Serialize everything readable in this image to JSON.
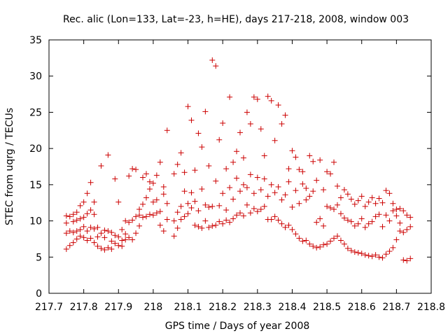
{
  "chart_data": {
    "type": "scatter",
    "title": "Rec. alic (Lon=133, Lat=-23, h=HE), days 217-218, 2008, window 003",
    "xlabel": "GPS time / Days of year 2008",
    "ylabel": "STEC from uqrg / TECUs",
    "xlim": [
      217.7,
      218.8
    ],
    "ylim": [
      0,
      35
    ],
    "xticks": [
      "217.7",
      "217.8",
      "217.9",
      "218",
      "218.1",
      "218.2",
      "218.3",
      "218.4",
      "218.5",
      "218.6",
      "218.7",
      "218.8"
    ],
    "yticks": [
      "0",
      "5",
      "10",
      "15",
      "20",
      "25",
      "30",
      "35"
    ],
    "grid": false,
    "marker": "+",
    "color": "#cc0000",
    "points": [
      [
        217.75,
        6.1
      ],
      [
        217.75,
        8.3
      ],
      [
        217.75,
        9.7
      ],
      [
        217.75,
        10.7
      ],
      [
        217.76,
        6.6
      ],
      [
        217.76,
        8.6
      ],
      [
        217.76,
        10.6
      ],
      [
        217.77,
        7.0
      ],
      [
        217.77,
        8.4
      ],
      [
        217.77,
        9.9
      ],
      [
        217.77,
        10.9
      ],
      [
        217.78,
        7.5
      ],
      [
        217.78,
        8.6
      ],
      [
        217.78,
        10.1
      ],
      [
        217.78,
        11.2
      ],
      [
        217.79,
        7.9
      ],
      [
        217.79,
        8.8
      ],
      [
        217.79,
        10.3
      ],
      [
        217.79,
        12.1
      ],
      [
        217.8,
        7.7
      ],
      [
        217.8,
        9.2
      ],
      [
        217.8,
        10.5
      ],
      [
        217.8,
        12.6
      ],
      [
        217.81,
        7.3
      ],
      [
        217.81,
        8.6
      ],
      [
        217.81,
        11.0
      ],
      [
        217.81,
        13.8
      ],
      [
        217.82,
        7.6
      ],
      [
        217.82,
        9.1
      ],
      [
        217.82,
        11.5
      ],
      [
        217.82,
        15.3
      ],
      [
        217.83,
        7.0
      ],
      [
        217.83,
        8.9
      ],
      [
        217.83,
        10.9
      ],
      [
        217.83,
        12.6
      ],
      [
        217.84,
        6.5
      ],
      [
        217.84,
        7.8
      ],
      [
        217.84,
        9.1
      ],
      [
        217.85,
        6.2
      ],
      [
        217.85,
        8.3
      ],
      [
        217.85,
        17.6
      ],
      [
        217.86,
        6.0
      ],
      [
        217.86,
        7.7
      ],
      [
        217.86,
        8.7
      ],
      [
        217.87,
        6.3
      ],
      [
        217.87,
        8.6
      ],
      [
        217.87,
        19.1
      ],
      [
        217.88,
        6.1
      ],
      [
        217.88,
        7.2
      ],
      [
        217.88,
        8.4
      ],
      [
        217.89,
        6.9
      ],
      [
        217.89,
        8.0
      ],
      [
        217.89,
        15.8
      ],
      [
        217.9,
        6.6
      ],
      [
        217.9,
        7.8
      ],
      [
        217.9,
        12.6
      ],
      [
        217.91,
        6.5
      ],
      [
        217.91,
        7.3
      ],
      [
        217.91,
        8.8
      ],
      [
        217.92,
        7.4
      ],
      [
        217.92,
        8.2
      ],
      [
        217.92,
        10.0
      ],
      [
        217.93,
        7.7
      ],
      [
        217.93,
        9.8
      ],
      [
        217.93,
        16.2
      ],
      [
        217.94,
        7.4
      ],
      [
        217.94,
        10.1
      ],
      [
        217.94,
        17.2
      ],
      [
        217.95,
        8.3
      ],
      [
        217.95,
        10.6
      ],
      [
        217.95,
        17.1
      ],
      [
        217.96,
        9.3
      ],
      [
        217.96,
        10.8
      ],
      [
        217.96,
        11.6
      ],
      [
        217.97,
        10.5
      ],
      [
        217.97,
        12.3
      ],
      [
        217.97,
        16.0
      ],
      [
        217.98,
        10.6
      ],
      [
        217.98,
        13.2
      ],
      [
        217.98,
        16.5
      ],
      [
        217.99,
        10.9
      ],
      [
        217.99,
        14.4
      ],
      [
        217.99,
        15.4
      ],
      [
        218.0,
        10.8
      ],
      [
        218.0,
        12.6
      ],
      [
        218.0,
        15.2
      ],
      [
        218.01,
        11.1
      ],
      [
        218.01,
        12.9
      ],
      [
        218.01,
        16.3
      ],
      [
        218.02,
        9.4
      ],
      [
        218.02,
        11.3
      ],
      [
        218.02,
        18.1
      ],
      [
        218.03,
        8.6
      ],
      [
        218.03,
        13.7
      ],
      [
        218.03,
        14.7
      ],
      [
        218.04,
        10.2
      ],
      [
        218.04,
        12.4
      ],
      [
        218.04,
        22.5
      ],
      [
        218.06,
        7.9
      ],
      [
        218.06,
        10.0
      ],
      [
        218.06,
        16.5
      ],
      [
        218.07,
        9.0
      ],
      [
        218.07,
        11.2
      ],
      [
        218.07,
        17.8
      ],
      [
        218.08,
        10.2
      ],
      [
        218.08,
        12.0
      ],
      [
        218.08,
        19.4
      ],
      [
        218.09,
        10.6
      ],
      [
        218.09,
        14.1
      ],
      [
        218.09,
        16.7
      ],
      [
        218.1,
        11.0
      ],
      [
        218.1,
        12.4
      ],
      [
        218.1,
        25.8
      ],
      [
        218.11,
        11.8
      ],
      [
        218.11,
        13.9
      ],
      [
        218.11,
        23.9
      ],
      [
        218.12,
        9.4
      ],
      [
        218.12,
        12.7
      ],
      [
        218.12,
        17.0
      ],
      [
        218.13,
        9.2
      ],
      [
        218.13,
        11.4
      ],
      [
        218.13,
        22.1
      ],
      [
        218.14,
        9.0
      ],
      [
        218.14,
        14.4
      ],
      [
        218.14,
        20.2
      ],
      [
        218.15,
        10.0
      ],
      [
        218.15,
        12.2
      ],
      [
        218.15,
        25.1
      ],
      [
        218.16,
        9.1
      ],
      [
        218.16,
        11.9
      ],
      [
        218.16,
        17.6
      ],
      [
        218.17,
        9.3
      ],
      [
        218.17,
        12.0
      ],
      [
        218.17,
        32.2
      ],
      [
        218.18,
        9.4
      ],
      [
        218.18,
        15.5
      ],
      [
        218.18,
        31.4
      ],
      [
        218.19,
        9.9
      ],
      [
        218.19,
        12.1
      ],
      [
        218.19,
        21.2
      ],
      [
        218.2,
        9.6
      ],
      [
        218.2,
        13.8
      ],
      [
        218.2,
        23.5
      ],
      [
        218.21,
        10.1
      ],
      [
        218.21,
        11.5
      ],
      [
        218.21,
        17.2
      ],
      [
        218.22,
        9.8
      ],
      [
        218.22,
        14.6
      ],
      [
        218.22,
        27.1
      ],
      [
        218.23,
        10.3
      ],
      [
        218.23,
        13.0
      ],
      [
        218.23,
        18.1
      ],
      [
        218.24,
        10.8
      ],
      [
        218.24,
        15.9
      ],
      [
        218.24,
        19.6
      ],
      [
        218.25,
        11.1
      ],
      [
        218.25,
        14.1
      ],
      [
        218.25,
        22.2
      ],
      [
        218.26,
        10.7
      ],
      [
        218.26,
        15.0
      ],
      [
        218.26,
        18.7
      ],
      [
        218.27,
        12.2
      ],
      [
        218.27,
        14.6
      ],
      [
        218.27,
        25.0
      ],
      [
        218.28,
        11.1
      ],
      [
        218.28,
        16.4
      ],
      [
        218.28,
        23.4
      ],
      [
        218.29,
        11.7
      ],
      [
        218.29,
        13.8
      ],
      [
        218.29,
        27.1
      ],
      [
        218.3,
        11.3
      ],
      [
        218.3,
        16.0
      ],
      [
        218.3,
        26.8
      ],
      [
        218.31,
        11.6
      ],
      [
        218.31,
        14.3
      ],
      [
        218.31,
        22.7
      ],
      [
        218.32,
        12.0
      ],
      [
        218.32,
        15.8
      ],
      [
        218.32,
        19.0
      ],
      [
        218.33,
        10.2
      ],
      [
        218.33,
        13.4
      ],
      [
        218.33,
        27.2
      ],
      [
        218.34,
        10.2
      ],
      [
        218.34,
        15.0
      ],
      [
        218.34,
        26.6
      ],
      [
        218.35,
        10.6
      ],
      [
        218.35,
        13.9
      ],
      [
        218.35,
        21.1
      ],
      [
        218.36,
        10.1
      ],
      [
        218.36,
        14.7
      ],
      [
        218.36,
        26.0
      ],
      [
        218.37,
        9.6
      ],
      [
        218.37,
        12.9
      ],
      [
        218.37,
        23.4
      ],
      [
        218.38,
        9.1
      ],
      [
        218.38,
        13.6
      ],
      [
        218.38,
        24.6
      ],
      [
        218.39,
        9.4
      ],
      [
        218.39,
        15.4
      ],
      [
        218.39,
        17.2
      ],
      [
        218.4,
        8.8
      ],
      [
        218.4,
        11.9
      ],
      [
        218.4,
        19.7
      ],
      [
        218.41,
        8.2
      ],
      [
        218.41,
        14.2
      ],
      [
        218.41,
        18.8
      ],
      [
        218.42,
        7.6
      ],
      [
        218.42,
        12.4
      ],
      [
        218.42,
        17.1
      ],
      [
        218.43,
        7.2
      ],
      [
        218.43,
        15.1
      ],
      [
        218.43,
        16.8
      ],
      [
        218.44,
        7.3
      ],
      [
        218.44,
        12.9
      ],
      [
        218.44,
        14.5
      ],
      [
        218.45,
        6.8
      ],
      [
        218.45,
        13.4
      ],
      [
        218.45,
        19.0
      ],
      [
        218.46,
        6.5
      ],
      [
        218.46,
        14.1
      ],
      [
        218.46,
        18.2
      ],
      [
        218.47,
        6.3
      ],
      [
        218.47,
        9.8
      ],
      [
        218.47,
        15.6
      ],
      [
        218.48,
        6.4
      ],
      [
        218.48,
        10.3
      ],
      [
        218.48,
        18.4
      ],
      [
        218.49,
        6.7
      ],
      [
        218.49,
        9.3
      ],
      [
        218.49,
        14.3
      ],
      [
        218.5,
        6.8
      ],
      [
        218.5,
        12.0
      ],
      [
        218.5,
        16.8
      ],
      [
        218.51,
        7.2
      ],
      [
        218.51,
        11.8
      ],
      [
        218.51,
        16.5
      ],
      [
        218.52,
        7.6
      ],
      [
        218.52,
        11.6
      ],
      [
        218.52,
        18.1
      ],
      [
        218.53,
        7.9
      ],
      [
        218.53,
        12.2
      ],
      [
        218.53,
        14.8
      ],
      [
        218.54,
        7.3
      ],
      [
        218.54,
        11.0
      ],
      [
        218.54,
        13.2
      ],
      [
        218.55,
        6.8
      ],
      [
        218.55,
        10.4
      ],
      [
        218.55,
        14.3
      ],
      [
        218.56,
        6.2
      ],
      [
        218.56,
        10.1
      ],
      [
        218.56,
        13.7
      ],
      [
        218.57,
        5.9
      ],
      [
        218.57,
        9.9
      ],
      [
        218.57,
        13.0
      ],
      [
        218.58,
        5.7
      ],
      [
        218.58,
        9.3
      ],
      [
        218.58,
        12.3
      ],
      [
        218.59,
        5.6
      ],
      [
        218.59,
        9.6
      ],
      [
        218.59,
        12.8
      ],
      [
        218.6,
        5.5
      ],
      [
        218.6,
        10.3
      ],
      [
        218.6,
        13.4
      ],
      [
        218.61,
        5.3
      ],
      [
        218.61,
        9.1
      ],
      [
        218.61,
        12.0
      ],
      [
        218.62,
        5.2
      ],
      [
        218.62,
        9.6
      ],
      [
        218.62,
        12.6
      ],
      [
        218.63,
        5.1
      ],
      [
        218.63,
        9.9
      ],
      [
        218.63,
        13.2
      ],
      [
        218.64,
        5.3
      ],
      [
        218.64,
        10.6
      ],
      [
        218.64,
        12.4
      ],
      [
        218.65,
        5.0
      ],
      [
        218.65,
        10.9
      ],
      [
        218.65,
        13.1
      ],
      [
        218.66,
        4.9
      ],
      [
        218.66,
        9.2
      ],
      [
        218.66,
        12.5
      ],
      [
        218.67,
        5.4
      ],
      [
        218.67,
        10.8
      ],
      [
        218.67,
        14.2
      ],
      [
        218.68,
        5.8
      ],
      [
        218.68,
        10.0
      ],
      [
        218.68,
        13.8
      ],
      [
        218.69,
        6.3
      ],
      [
        218.69,
        11.4
      ],
      [
        218.69,
        12.4
      ],
      [
        218.7,
        7.4
      ],
      [
        218.7,
        10.7
      ],
      [
        218.7,
        11.6
      ],
      [
        218.71,
        8.6
      ],
      [
        218.71,
        9.7
      ],
      [
        218.71,
        11.7
      ],
      [
        218.72,
        4.6
      ],
      [
        218.72,
        8.4
      ],
      [
        218.72,
        11.4
      ],
      [
        218.73,
        4.5
      ],
      [
        218.73,
        8.8
      ],
      [
        218.73,
        10.8
      ],
      [
        218.74,
        4.8
      ],
      [
        218.74,
        9.2
      ],
      [
        218.74,
        10.5
      ]
    ]
  }
}
